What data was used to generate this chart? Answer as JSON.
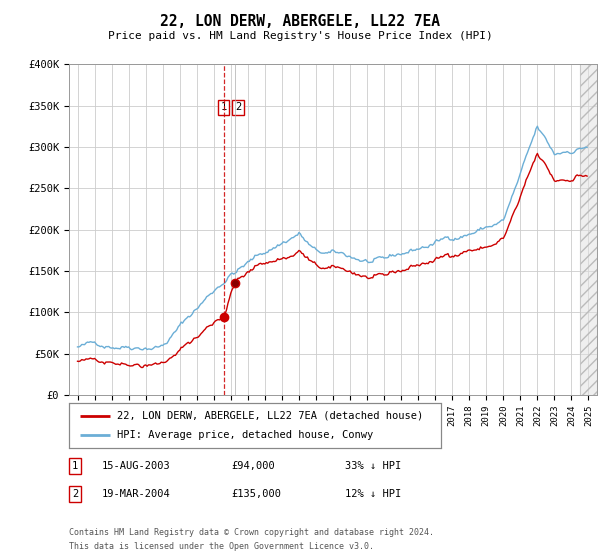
{
  "title": "22, LON DERW, ABERGELE, LL22 7EA",
  "subtitle": "Price paid vs. HM Land Registry's House Price Index (HPI)",
  "legend_line1": "22, LON DERW, ABERGELE, LL22 7EA (detached house)",
  "legend_line2": "HPI: Average price, detached house, Conwy",
  "footer1": "Contains HM Land Registry data © Crown copyright and database right 2024.",
  "footer2": "This data is licensed under the Open Government Licence v3.0.",
  "transaction1_date": "15-AUG-2003",
  "transaction1_price": "£94,000",
  "transaction1_hpi": "33% ↓ HPI",
  "transaction2_date": "19-MAR-2004",
  "transaction2_price": "£135,000",
  "transaction2_hpi": "12% ↓ HPI",
  "ylim": [
    0,
    400000
  ],
  "yticks": [
    0,
    50000,
    100000,
    150000,
    200000,
    250000,
    300000,
    350000,
    400000
  ],
  "ytick_labels": [
    "£0",
    "£50K",
    "£100K",
    "£150K",
    "£200K",
    "£250K",
    "£300K",
    "£350K",
    "£400K"
  ],
  "hpi_color": "#6baed6",
  "price_color": "#cc0000",
  "vline_color": "#cc0000",
  "vline_x1": 2003.62,
  "vline_x2": 2004.22,
  "marker1_x": 2003.62,
  "marker1_y": 94000,
  "marker2_x": 2004.22,
  "marker2_y": 135000,
  "xlim_start": 1994.5,
  "xlim_end": 2025.5,
  "background_color": "#ffffff",
  "grid_color": "#cccccc"
}
